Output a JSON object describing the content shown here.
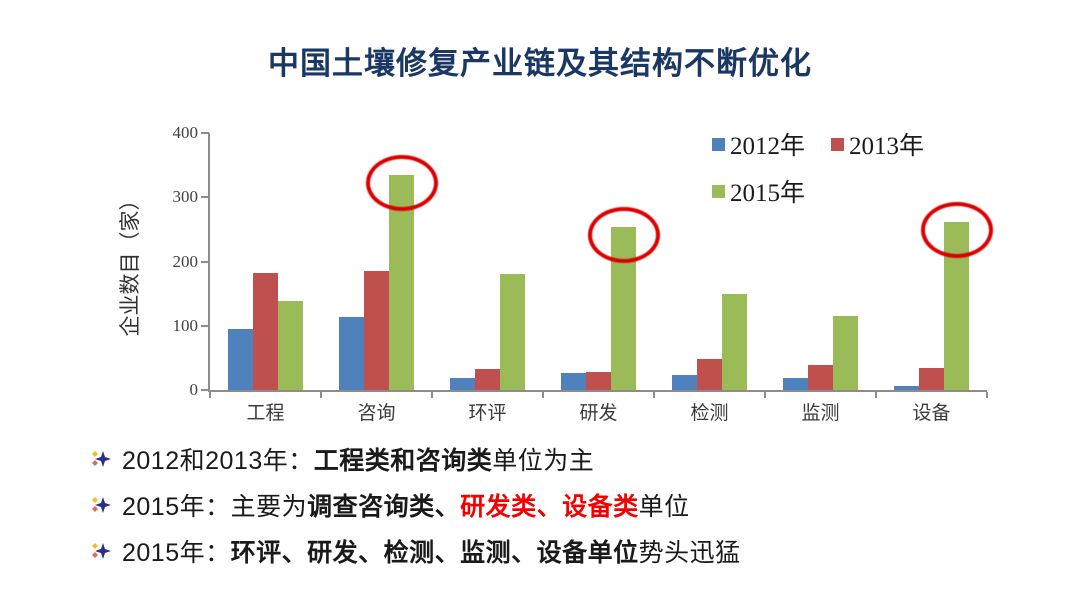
{
  "title": "中国土壤修复产业链及其结构不断优化",
  "chart_data": {
    "type": "bar",
    "title": "中国土壤修复产业链及其结构不断优化",
    "xlabel": "",
    "ylabel": "企业数目（家）",
    "categories": [
      "工程",
      "咨询",
      "环评",
      "研发",
      "检测",
      "监测",
      "设备"
    ],
    "series": [
      {
        "name": "2012年",
        "color": "#4F81BD",
        "values": [
          95,
          114,
          18,
          26,
          24,
          18,
          6
        ]
      },
      {
        "name": "2013年",
        "color": "#C0504D",
        "values": [
          182,
          185,
          32,
          28,
          48,
          39,
          34
        ]
      },
      {
        "name": "2015年",
        "color": "#9BBB59",
        "values": [
          139,
          335,
          180,
          253,
          149,
          116,
          261
        ]
      }
    ],
    "ylim": [
      0,
      400
    ],
    "yticks": [
      0,
      100,
      200,
      300,
      400
    ],
    "grid": false,
    "legend_position": "top-right",
    "annotations": "red ellipses circle the 2015年 bars of 咨询, 研发, 设备",
    "highlighted_categories": [
      "咨询",
      "研发",
      "设备"
    ]
  },
  "bullets": [
    {
      "segments": [
        {
          "text": "2012和2013年：",
          "style": "normal"
        },
        {
          "text": "工程类和咨询类",
          "style": "bold"
        },
        {
          "text": "单位为主",
          "style": "normal"
        }
      ]
    },
    {
      "segments": [
        {
          "text": "2015年：主要为",
          "style": "normal"
        },
        {
          "text": "调查咨询类、",
          "style": "bold"
        },
        {
          "text": "研发类、设备类",
          "style": "bold-red"
        },
        {
          "text": "单位",
          "style": "normal"
        }
      ]
    },
    {
      "segments": [
        {
          "text": "2015年：",
          "style": "normal"
        },
        {
          "text": "环评、研发、检测、监测、设备单位",
          "style": "bold"
        },
        {
          "text": "势头迅猛",
          "style": "normal"
        }
      ]
    }
  ],
  "colors": {
    "title": "#1B3764",
    "bar_2012": "#4F81BD",
    "bar_2013": "#C0504D",
    "bar_2015": "#9BBB59",
    "axis": "#8C8C8C",
    "red_text": "#F50000",
    "circle": "#DB0000",
    "background": "#FFFFFF"
  }
}
